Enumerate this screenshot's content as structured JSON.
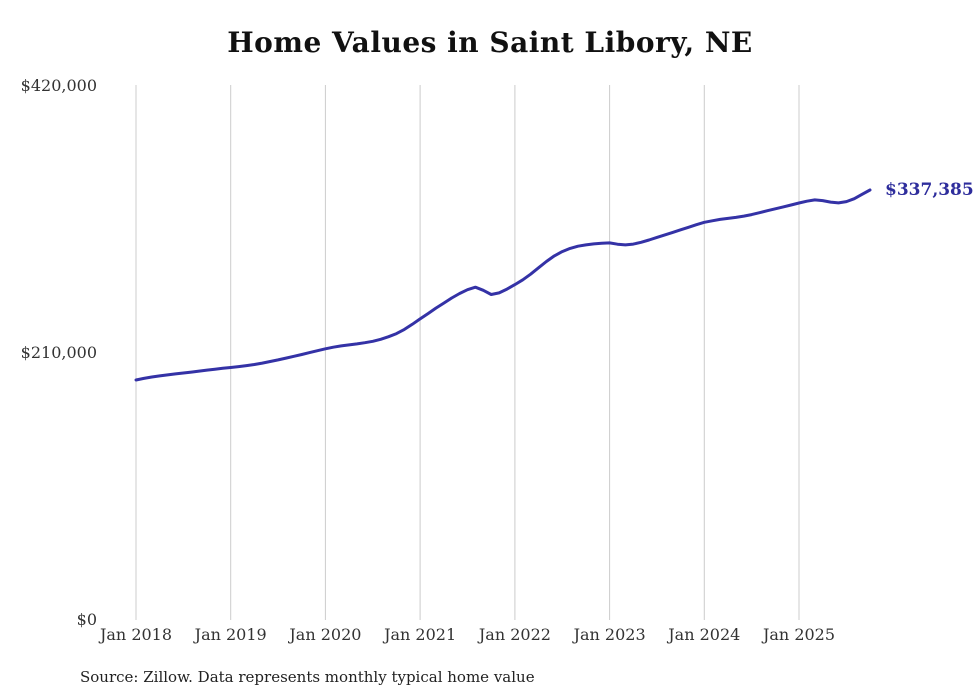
{
  "title": "Home Values in Saint Libory, NE",
  "source_note": "Source: Zillow. Data represents monthly typical home value",
  "colors": {
    "line": "#3432a6",
    "grid": "#cccccc",
    "axis_text": "#333333",
    "annotation": "#2e2d9c",
    "background": "#ffffff"
  },
  "chart_data": {
    "type": "line",
    "title": "Home Values in Saint Libory, NE",
    "xlabel": "",
    "ylabel": "",
    "ylim": [
      0,
      420000
    ],
    "grid": "vertical-only",
    "legend": "none",
    "y_ticks": [
      {
        "value": 0,
        "label": "$0"
      },
      {
        "value": 210000,
        "label": "$210,000"
      },
      {
        "value": 420000,
        "label": "$420,000"
      }
    ],
    "x_tick_labels": [
      "Jan 2018",
      "Jan 2019",
      "Jan 2020",
      "Jan 2021",
      "Jan 2022",
      "Jan 2023",
      "Jan 2024",
      "Jan 2025"
    ],
    "x_start_month": "Jan 2018",
    "x_end_month": "Oct 2025",
    "end_annotation": "$337,385",
    "latest_value": 337385,
    "values": [
      188000,
      189200,
      190300,
      191200,
      192000,
      192800,
      193500,
      194200,
      195000,
      195800,
      196500,
      197200,
      197800,
      198500,
      199300,
      200200,
      201300,
      202500,
      203800,
      205200,
      206600,
      208000,
      209500,
      211000,
      212500,
      213800,
      214800,
      215600,
      216400,
      217300,
      218400,
      220000,
      222000,
      224500,
      227800,
      231800,
      236000,
      240200,
      244500,
      248500,
      252500,
      256000,
      259000,
      261000,
      258500,
      255200,
      256500,
      259500,
      263000,
      266800,
      271200,
      276200,
      281200,
      285600,
      289000,
      291500,
      293200,
      294200,
      295000,
      295500,
      295800,
      294800,
      294200,
      294900,
      296300,
      298100,
      300100,
      302100,
      304100,
      306100,
      308100,
      310100,
      312000,
      313200,
      314300,
      315100,
      315900,
      316900,
      318100,
      319600,
      321100,
      322600,
      324100,
      325600,
      327200,
      328600,
      329600,
      329100,
      327900,
      327300,
      328300,
      330600,
      334000,
      337385
    ]
  }
}
